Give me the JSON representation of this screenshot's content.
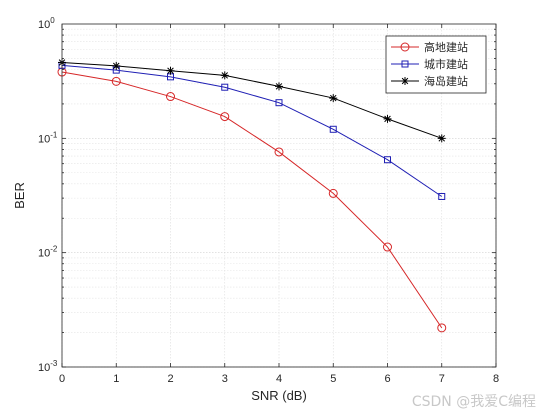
{
  "chart_data": {
    "type": "line",
    "xlabel": "SNR (dB)",
    "ylabel": "BER",
    "xlim": [
      0,
      8
    ],
    "ylim": [
      0.001,
      1
    ],
    "yscale": "log",
    "grid": true,
    "legend_position": "top-right",
    "x_ticks": [
      "0",
      "1",
      "2",
      "3",
      "4",
      "5",
      "6",
      "7",
      "8"
    ],
    "y_ticks": [
      {
        "value": 0.001,
        "base": "10",
        "exp": "-3"
      },
      {
        "value": 0.01,
        "base": "10",
        "exp": "-2"
      },
      {
        "value": 0.1,
        "base": "10",
        "exp": "-1"
      },
      {
        "value": 1,
        "base": "10",
        "exp": "0"
      }
    ],
    "x": [
      0,
      1,
      2,
      3,
      4,
      5,
      6,
      7
    ],
    "series": [
      {
        "name": "高地建站",
        "color": "#d62728",
        "marker": "circle",
        "values": [
          0.38,
          0.315,
          0.232,
          0.155,
          0.076,
          0.033,
          0.0112,
          0.0022
        ]
      },
      {
        "name": "城市建站",
        "color": "#1f1fb4",
        "marker": "square",
        "values": [
          0.435,
          0.395,
          0.345,
          0.28,
          0.205,
          0.12,
          0.065,
          0.031
        ]
      },
      {
        "name": "海岛建站",
        "color": "#000000",
        "marker": "star",
        "values": [
          0.46,
          0.43,
          0.39,
          0.355,
          0.285,
          0.225,
          0.148,
          0.1
        ]
      }
    ]
  },
  "watermark": "CSDN @我爱C编程"
}
